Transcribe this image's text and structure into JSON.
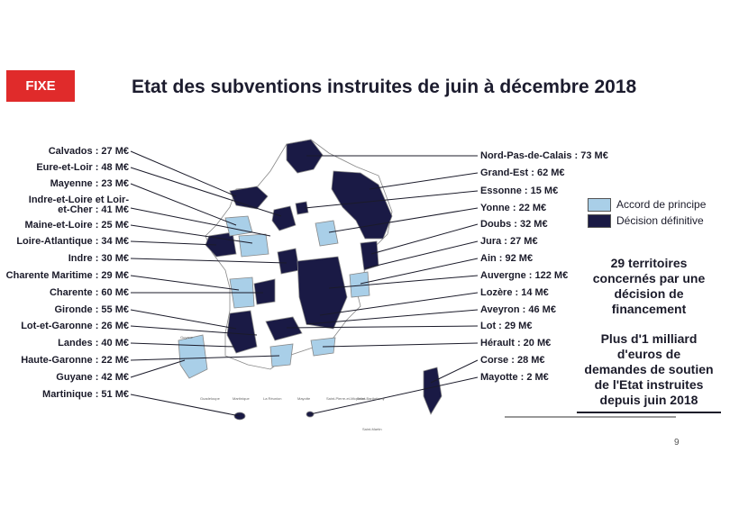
{
  "badge": "FIXE",
  "title": "Etat des subventions instruites de juin à décembre 2018",
  "left_labels": [
    "Calvados : 27 M€",
    "Eure-et-Loir : 48 M€",
    "Mayenne : 23 M€",
    "Indre-et-Loire et Loir-",
    "et-Cher : 41 M€",
    "Maine-et-Loire : 25 M€",
    "Loire-Atlantique : 34 M€",
    "Indre : 30 M€",
    "Charente Maritime : 29 M€",
    "Charente : 60 M€",
    "Gironde : 55 M€",
    "Lot-et-Garonne : 26 M€",
    "Landes : 40 M€",
    "Haute-Garonne : 22 M€",
    "Guyane : 42 M€",
    "Martinique : 51 M€"
  ],
  "right_labels": [
    "Nord-Pas-de-Calais : 73 M€",
    "Grand-Est : 62 M€",
    "Essonne : 15 M€",
    "Yonne : 22 M€",
    "Doubs : 32 M€",
    "Jura : 27 M€",
    "Ain : 92 M€",
    "Auvergne : 122 M€",
    "Lozère : 14 M€",
    "Aveyron : 46 M€",
    "Lot : 29 M€",
    "Hérault : 20 M€",
    "Corse : 28 M€",
    "Mayotte : 2 M€"
  ],
  "legend": [
    {
      "label": "Accord de principe",
      "color": "#a9cfe8"
    },
    {
      "label": "Décision définitive",
      "color": "#1a1a45"
    }
  ],
  "summary1": [
    "29 territoires",
    "concernés par une",
    "décision de",
    "financement"
  ],
  "summary2": [
    "Plus d'1 milliard",
    "d'euros de",
    "demandes de soutien",
    "de l'Etat instruites",
    "depuis juin 2018"
  ],
  "overseas_labels": [
    "Guyane",
    "Guadeloupe",
    "Martinique",
    "La Réunion",
    "Mayotte",
    "Saint-Pierre-et-Miquelon",
    "Saint-Barthélemy",
    "Saint-Martin"
  ],
  "page_number": "9"
}
